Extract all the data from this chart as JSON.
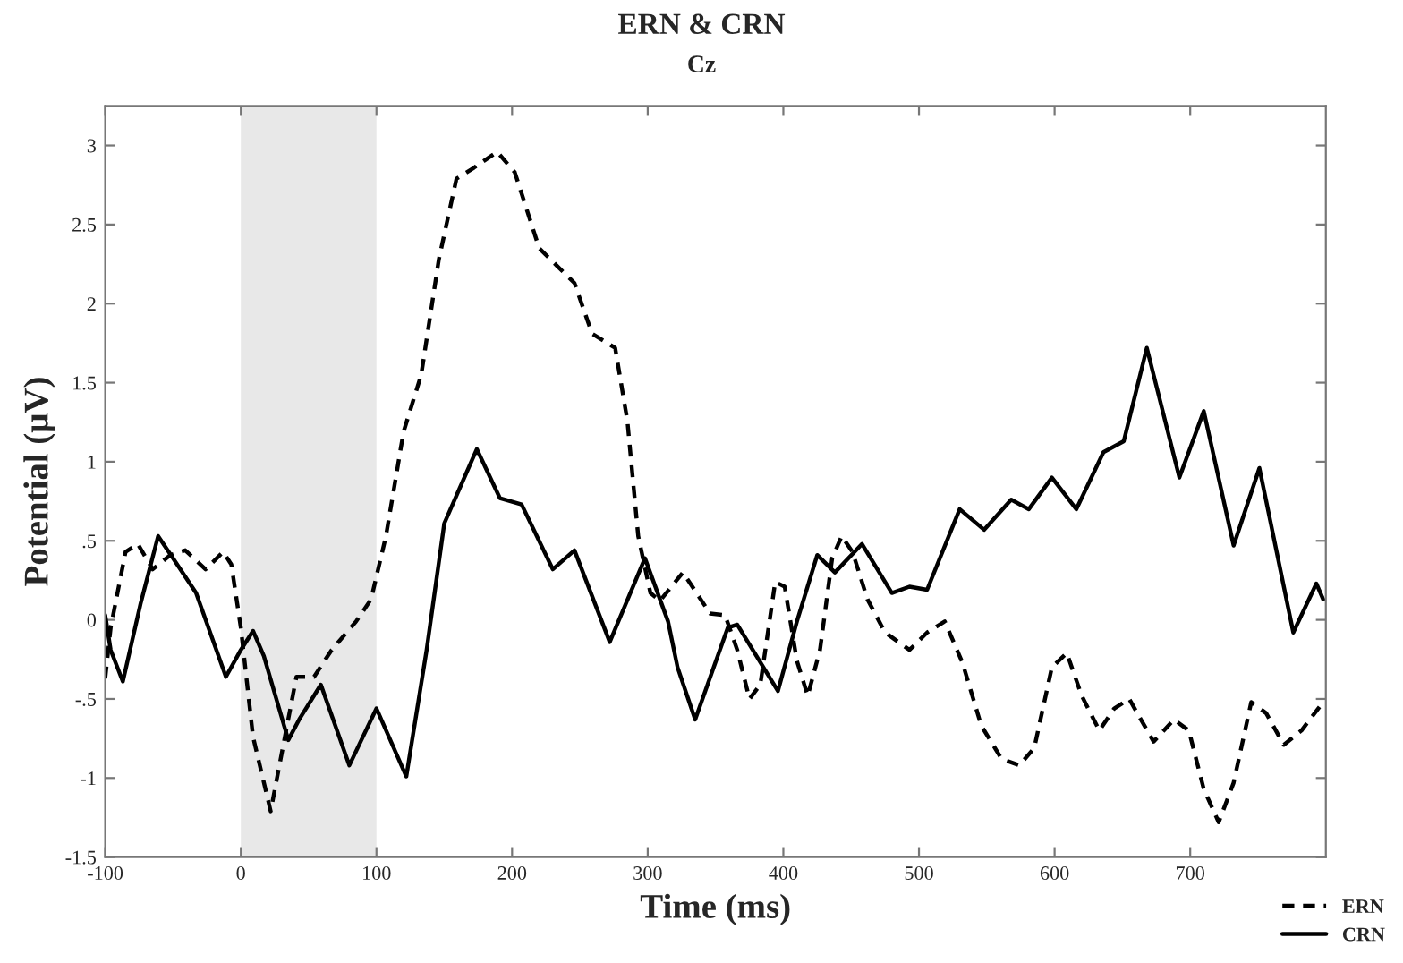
{
  "chart_data": {
    "type": "line",
    "title": "ERN & CRN",
    "subtitle": "Cz",
    "xlabel": "Time (ms)",
    "ylabel": "Potential (μV)",
    "xlim": [
      -100,
      800
    ],
    "xticks": [
      -100,
      0,
      100,
      200,
      300,
      400,
      500,
      600,
      700
    ],
    "ylim": [
      -1.5,
      3.25
    ],
    "yticks": [
      -1.5,
      -1,
      {
        "value": -0.5,
        "label": "-.5"
      },
      0,
      {
        "value": 0.5,
        "label": ".5"
      },
      1,
      1.5,
      2,
      2.5,
      3
    ],
    "grid": false,
    "legend": "bottom right",
    "marker": "none",
    "bands": [
      {
        "axis": "x",
        "from": 0,
        "to": 100,
        "color": "#e8e8e8"
      }
    ],
    "series": [
      {
        "name": "ERN",
        "color": "#000000",
        "line_style": "dashed",
        "x": [
          -100,
          -96,
          -85,
          -76,
          -65,
          -52,
          -41,
          -26,
          -13,
          -7,
          0,
          9,
          22,
          30,
          41,
          54,
          67,
          85,
          96,
          107,
          120,
          133,
          146,
          159,
          172,
          189,
          202,
          220,
          233,
          246,
          259,
          276,
          285,
          293,
          302,
          309,
          326,
          346,
          357,
          366,
          375,
          383,
          394,
          401,
          410,
          418,
          427,
          436,
          443,
          451,
          462,
          475,
          493,
          506,
          519,
          532,
          546,
          561,
          574,
          585,
          598,
          609,
          620,
          633,
          644,
          655,
          673,
          688,
          699,
          710,
          721,
          732,
          745,
          756,
          769,
          782,
          798
        ],
        "values": [
          -0.37,
          -0.05,
          0.43,
          0.48,
          0.32,
          0.41,
          0.44,
          0.32,
          0.43,
          0.35,
          -0.05,
          -0.74,
          -1.21,
          -0.85,
          -0.36,
          -0.36,
          -0.19,
          -0.01,
          0.13,
          0.53,
          1.19,
          1.55,
          2.28,
          2.79,
          2.86,
          2.96,
          2.83,
          2.35,
          2.24,
          2.13,
          1.81,
          1.72,
          1.26,
          0.53,
          0.17,
          0.12,
          0.3,
          0.04,
          0.03,
          -0.19,
          -0.5,
          -0.41,
          0.24,
          0.21,
          -0.26,
          -0.48,
          -0.19,
          0.39,
          0.53,
          0.43,
          0.13,
          -0.08,
          -0.19,
          -0.08,
          -0.01,
          -0.27,
          -0.67,
          -0.88,
          -0.92,
          -0.81,
          -0.3,
          -0.21,
          -0.48,
          -0.7,
          -0.56,
          -0.5,
          -0.77,
          -0.63,
          -0.7,
          -1.07,
          -1.28,
          -1.03,
          -0.52,
          -0.59,
          -0.79,
          -0.7,
          -0.52
        ]
      },
      {
        "name": "CRN",
        "color": "#000000",
        "line_style": "solid",
        "x": [
          -100,
          -96,
          -87,
          -74,
          -61,
          -50,
          -33,
          -11,
          0,
          9,
          17,
          35,
          43,
          59,
          80,
          100,
          122,
          137,
          150,
          174,
          191,
          207,
          230,
          246,
          272,
          298,
          315,
          322,
          335,
          359,
          366,
          396,
          410,
          425,
          438,
          458,
          480,
          493,
          506,
          530,
          548,
          568,
          581,
          598,
          616,
          636,
          651,
          668,
          692,
          710,
          732,
          751,
          776,
          793,
          798
        ],
        "values": [
          0.03,
          -0.19,
          -0.39,
          0.1,
          0.53,
          0.39,
          0.17,
          -0.36,
          -0.19,
          -0.07,
          -0.23,
          -0.76,
          -0.63,
          -0.41,
          -0.92,
          -0.56,
          -0.99,
          -0.19,
          0.61,
          1.08,
          0.77,
          0.73,
          0.32,
          0.44,
          -0.14,
          0.39,
          -0.01,
          -0.3,
          -0.63,
          -0.05,
          -0.03,
          -0.45,
          -0.01,
          0.41,
          0.3,
          0.48,
          0.17,
          0.21,
          0.19,
          0.7,
          0.57,
          0.76,
          0.7,
          0.9,
          0.7,
          1.06,
          1.13,
          1.72,
          0.9,
          1.32,
          0.47,
          0.96,
          -0.08,
          0.23,
          0.13
        ]
      }
    ]
  }
}
